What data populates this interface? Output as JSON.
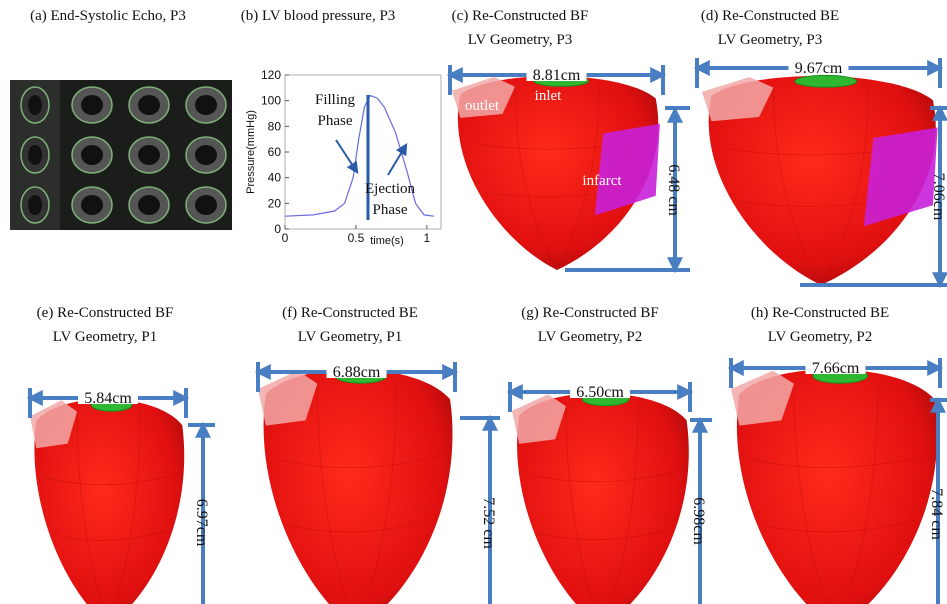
{
  "panels": [
    {
      "caption": [
        "(a) End-Systolic Echo, P3"
      ]
    },
    {
      "caption": [
        "(b) LV blood pressure, P3"
      ],
      "chart": {
        "type": "line",
        "y_label": "Pressure(mmHg)",
        "x_label": "time(s)",
        "xlim": [
          0,
          1.1
        ],
        "ylim": [
          0,
          120
        ],
        "xticks": [
          0,
          0.5,
          1
        ],
        "yticks": [
          0,
          20,
          40,
          60,
          80,
          100,
          120
        ],
        "color": "#6a6ae0",
        "x": [
          0,
          0.2,
          0.35,
          0.42,
          0.48,
          0.52,
          0.56,
          0.6,
          0.65,
          0.7,
          0.78,
          0.86,
          0.92,
          0.98,
          1.05
        ],
        "values": [
          10,
          11,
          14,
          20,
          40,
          70,
          95,
          104,
          102,
          95,
          75,
          45,
          20,
          11,
          10
        ],
        "annotations": [
          [
            "Filling",
            "Phase"
          ],
          [
            "Ejection",
            "Phase"
          ]
        ]
      }
    },
    {
      "caption": [
        "(c) Re-Constructed BF",
        "LV Geometry, P3"
      ],
      "width": "8.81cm",
      "height": "6.48 cm",
      "labels": [
        "outlet",
        "inlet",
        "infarct"
      ]
    },
    {
      "caption": [
        "(d) Re-Constructed BE",
        "LV Geometry, P3"
      ],
      "width": "9.67cm",
      "height": "7.06cm"
    },
    {
      "caption": [
        "(e) Re-Constructed BF",
        "LV Geometry, P1"
      ],
      "width": "5.84cm",
      "height": "6.97cm"
    },
    {
      "caption": [
        "(f) Re-Constructed BE",
        "LV Geometry, P1"
      ],
      "width": "6.88cm",
      "height": "7.52 cm"
    },
    {
      "caption": [
        "(g) Re-Constructed BF",
        "LV Geometry, P2"
      ],
      "width": "6.50cm",
      "height": "6.98cm"
    },
    {
      "caption": [
        "(h) Re-Constructed BE",
        "LV Geometry, P2"
      ],
      "width": "7.66cm",
      "height": "7.84 cm"
    }
  ]
}
